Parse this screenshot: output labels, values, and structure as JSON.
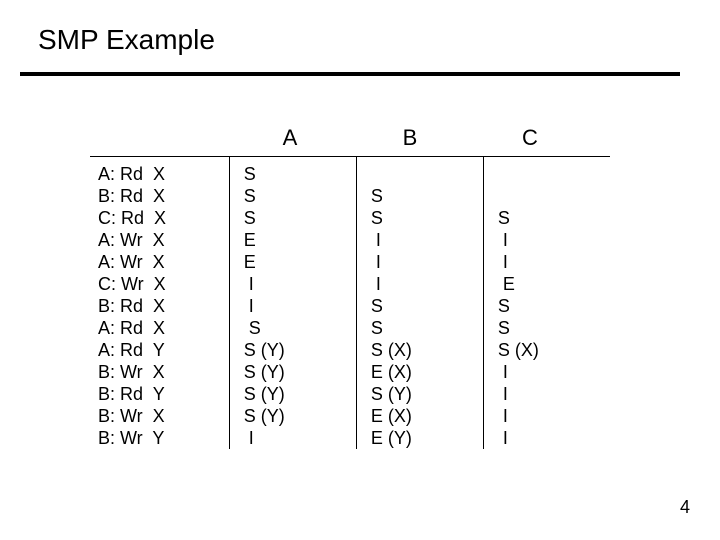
{
  "title": "SMP Example",
  "pageNumber": "4",
  "columns": {
    "a": "A",
    "b": "B",
    "c": "C"
  },
  "rows": [
    {
      "op": "A: Rd  X",
      "a": "S",
      "b": "",
      "c": ""
    },
    {
      "op": "B: Rd  X",
      "a": "S",
      "b": "S",
      "c": ""
    },
    {
      "op": "C: Rd  X",
      "a": "S",
      "b": "S",
      "c": "S"
    },
    {
      "op": "A: Wr  X",
      "a": "E",
      "b": " I",
      "c": " I"
    },
    {
      "op": "A: Wr  X",
      "a": "E",
      "b": " I",
      "c": " I"
    },
    {
      "op": "C: Wr  X",
      "a": " I",
      "b": " I",
      "c": " E"
    },
    {
      "op": "B: Rd  X",
      "a": " I",
      "b": "S",
      "c": "S"
    },
    {
      "op": "A: Rd  X",
      "a": " S",
      "b": "S",
      "c": "S"
    },
    {
      "op": "A: Rd  Y",
      "a": "S (Y)",
      "b": "S (X)",
      "c": "S (X)"
    },
    {
      "op": "B: Wr  X",
      "a": "S (Y)",
      "b": "E (X)",
      "c": " I"
    },
    {
      "op": "B: Rd  Y",
      "a": "S (Y)",
      "b": "S (Y)",
      "c": " I"
    },
    {
      "op": "B: Wr  X",
      "a": "S (Y)",
      "b": "E (X)",
      "c": " I"
    },
    {
      "op": "B: Wr  Y",
      "a": " I",
      "b": "E (Y)",
      "c": " I"
    }
  ],
  "style": {
    "titleFontSize": 28,
    "headerFontSize": 22,
    "bodyFontSize": 18,
    "lineHeight": 22,
    "ruleColor": "#000000",
    "textColor": "#000000",
    "background": "#ffffff"
  }
}
